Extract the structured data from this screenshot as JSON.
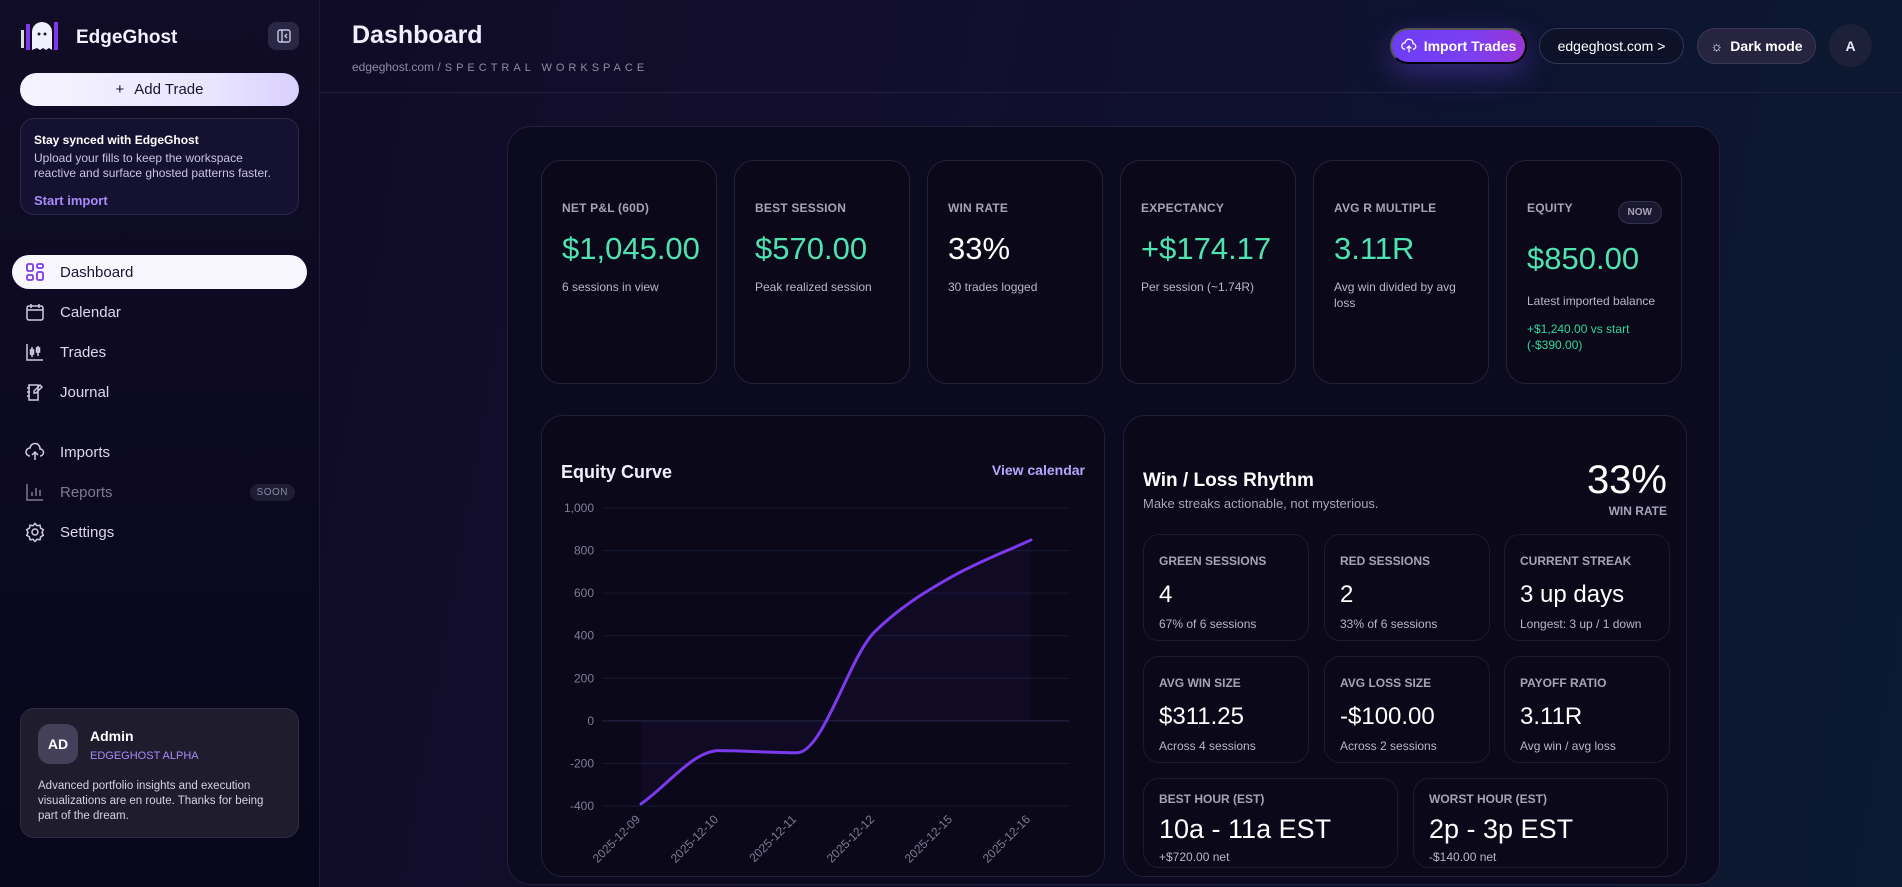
{
  "sidebar": {
    "brand": "EdgeGhost",
    "add_trade": "Add Trade",
    "sync": {
      "title": "Stay synced with EdgeGhost",
      "body": "Upload your fills to keep the workspace reactive and surface ghosted patterns faster.",
      "link": "Start import"
    },
    "items": [
      {
        "label": "Dashboard",
        "icon": "dashboard-grid-icon"
      },
      {
        "label": "Calendar",
        "icon": "calendar-icon"
      },
      {
        "label": "Trades",
        "icon": "candlestick-icon"
      },
      {
        "label": "Journal",
        "icon": "journal-icon"
      },
      {
        "label": "Imports",
        "icon": "cloud-upload-icon"
      },
      {
        "label": "Reports",
        "icon": "bar-chart-icon",
        "badge": "SOON"
      },
      {
        "label": "Settings",
        "icon": "gear-icon"
      }
    ],
    "user": {
      "initials": "AD",
      "name": "Admin",
      "role": "EDGEGHOST ALPHA",
      "note": "Advanced portfolio insights and execution visualizations are en route. Thanks for being part of the dream."
    }
  },
  "header": {
    "title": "Dashboard",
    "crumb_site": "edgeghost.com",
    "crumb_sep": "/",
    "crumb_workspace": "SPECTRAL WORKSPACE",
    "import_label": "Import Trades",
    "site_label": "edgeghost.com >",
    "theme_label": "Dark mode",
    "avatar": "A"
  },
  "kpis": [
    {
      "label": "NET P&L (60D)",
      "value": "$1,045.00",
      "sub": "6 sessions in view",
      "tone": "green"
    },
    {
      "label": "BEST SESSION",
      "value": "$570.00",
      "sub": "Peak realized session",
      "tone": "green"
    },
    {
      "label": "WIN RATE",
      "value": "33%",
      "sub": "30 trades logged",
      "tone": "white"
    },
    {
      "label": "EXPECTANCY",
      "value": "+$174.17",
      "sub": "Per session (~1.74R)",
      "tone": "green"
    },
    {
      "label": "AVG R MULTIPLE",
      "value": "3.11R",
      "sub": "Avg win divided by avg loss",
      "tone": "green"
    },
    {
      "label": "EQUITY",
      "badge": "NOW",
      "value": "$850.00",
      "sub": "Latest imported balance",
      "extra": "+$1,240.00 vs start (-$390.00)",
      "tone": "green"
    }
  ],
  "equity": {
    "title": "Equity Curve",
    "link": "View calendar"
  },
  "chart_data": {
    "type": "line",
    "x": [
      "2025-12-09",
      "2025-12-10",
      "2025-12-11",
      "2025-12-12",
      "2025-12-15",
      "2025-12-16"
    ],
    "values": [
      -390,
      -140,
      -150,
      420,
      680,
      850
    ],
    "ylim": [
      -400,
      1000
    ],
    "yticks": [
      "1,000",
      "800",
      "600",
      "400",
      "200",
      "0",
      "-200",
      "-400"
    ],
    "ytick_values": [
      1000,
      800,
      600,
      400,
      200,
      0,
      -200,
      -400
    ],
    "grid": true,
    "line_color": "#7c3aed"
  },
  "winloss": {
    "title": "Win / Loss Rhythm",
    "subtitle": "Make streaks actionable, not mysterious.",
    "rate": "33%",
    "rate_label": "WIN RATE",
    "stats": [
      {
        "label": "GREEN SESSIONS",
        "value": "4",
        "sub": "67% of 6 sessions",
        "tone": "green"
      },
      {
        "label": "RED SESSIONS",
        "value": "2",
        "sub": "33% of 6 sessions",
        "tone": "red"
      },
      {
        "label": "CURRENT STREAK",
        "value": "3 up days",
        "sub": "Longest: 3 up / 1 down",
        "tone": "white"
      },
      {
        "label": "AVG WIN SIZE",
        "value": "$311.25",
        "sub": "Across 4 sessions",
        "tone": "green"
      },
      {
        "label": "AVG LOSS SIZE",
        "value": "-$100.00",
        "sub": "Across 2 sessions",
        "tone": "red"
      },
      {
        "label": "PAYOFF RATIO",
        "value": "3.11R",
        "sub": "Avg win / avg loss",
        "tone": "white"
      }
    ],
    "hours": [
      {
        "label": "BEST HOUR (EST)",
        "value": "10a - 11a EST",
        "sub": "+$720.00 net",
        "tone": "green"
      },
      {
        "label": "WORST HOUR (EST)",
        "value": "2p - 3p EST",
        "sub": "-$140.00 net",
        "tone": "red"
      }
    ]
  }
}
